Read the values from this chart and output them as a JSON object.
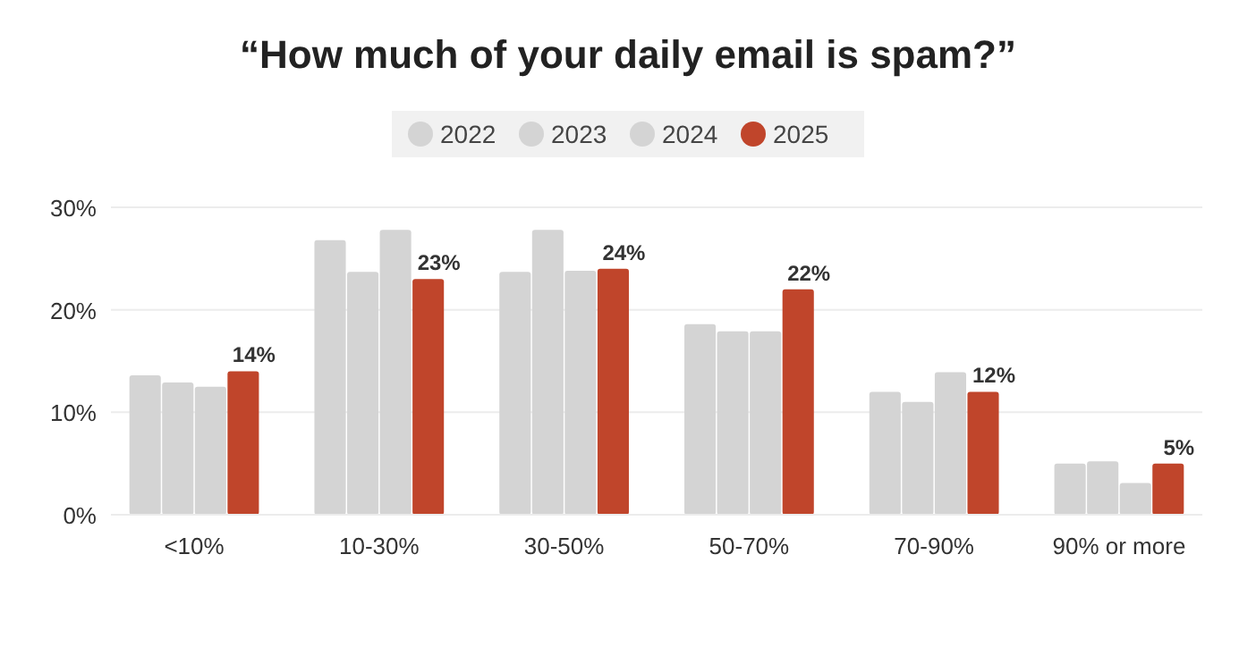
{
  "chart_data": {
    "type": "bar",
    "title": "“How much of your daily email is spam?”",
    "categories": [
      "<10%",
      "10-30%",
      "30-50%",
      "50-70%",
      "70-90%",
      "90% or more"
    ],
    "series": [
      {
        "name": "2022",
        "color": "#d4d4d4",
        "values": [
          13.6,
          26.8,
          23.7,
          18.6,
          12,
          5
        ]
      },
      {
        "name": "2023",
        "color": "#d4d4d4",
        "values": [
          12.9,
          23.7,
          27.8,
          17.9,
          11,
          5.2
        ]
      },
      {
        "name": "2024",
        "color": "#d4d4d4",
        "values": [
          12.5,
          27.8,
          23.8,
          17.9,
          13.9,
          3.1
        ]
      },
      {
        "name": "2025",
        "color": "#c0452b",
        "values": [
          14,
          23,
          24,
          22,
          12,
          5
        ],
        "value_labels": [
          "14%",
          "23%",
          "24%",
          "22%",
          "12%",
          "5%"
        ]
      }
    ],
    "ylim": [
      0,
      30
    ],
    "yticks": [
      {
        "value": 0,
        "label": "0%"
      },
      {
        "value": 10,
        "label": "10%"
      },
      {
        "value": 20,
        "label": "20%"
      },
      {
        "value": 30,
        "label": "30%"
      }
    ],
    "grid": "y",
    "legend": "top"
  }
}
